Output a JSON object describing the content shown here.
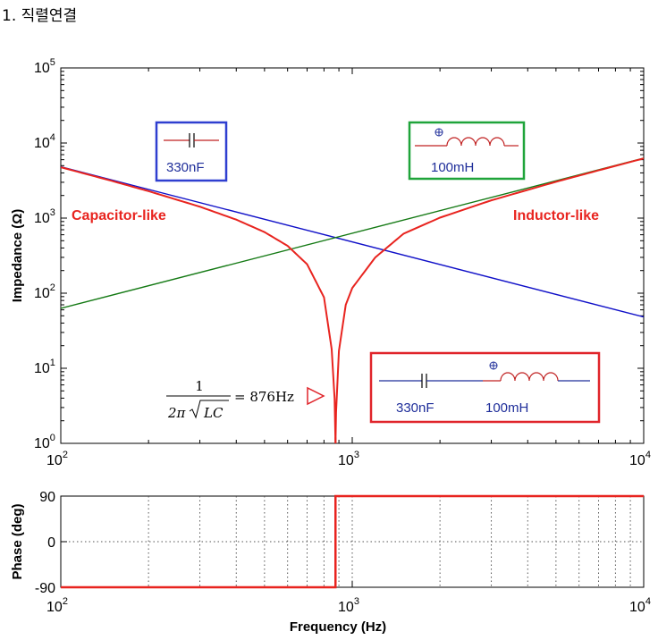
{
  "heading": "1. 직렬연결",
  "chart_data": [
    {
      "type": "line",
      "scale": "log-log",
      "ylabel": "Impedance (Ω)",
      "xlim": [
        100,
        10000
      ],
      "ylim": [
        1,
        100000
      ],
      "x_ticks": [
        {
          "base": "10",
          "exp": "2",
          "value": 100
        },
        {
          "base": "10",
          "exp": "3",
          "value": 1000
        },
        {
          "base": "10",
          "exp": "4",
          "value": 10000
        }
      ],
      "y_ticks": [
        {
          "base": "10",
          "exp": "0",
          "value": 1
        },
        {
          "base": "10",
          "exp": "1",
          "value": 10
        },
        {
          "base": "10",
          "exp": "2",
          "value": 100
        },
        {
          "base": "10",
          "exp": "3",
          "value": 1000
        },
        {
          "base": "10",
          "exp": "4",
          "value": 10000
        },
        {
          "base": "10",
          "exp": "5",
          "value": 100000
        }
      ],
      "series": [
        {
          "color": "#1010c8",
          "kind": "capacitor",
          "x": [
            100,
            10000
          ],
          "y": [
            4823,
            48.2
          ]
        },
        {
          "color": "#157a15",
          "kind": "inductor",
          "x": [
            100,
            10000
          ],
          "y": [
            62.8,
            6283
          ]
        },
        {
          "color": "#e8241f",
          "kind": "series-LC",
          "x": [
            100,
            150,
            200,
            300,
            400,
            500,
            600,
            700,
            800,
            850,
            870,
            876,
            880,
            900,
            950,
            1000,
            1200,
            1500,
            2000,
            3000,
            5000,
            7000,
            10000
          ],
          "y": [
            4760,
            3122,
            2286,
            1419,
            954,
            651,
            427,
            243,
            88,
            18,
            3.9,
            1,
            2.6,
            17,
            70,
            117,
            300,
            620,
            1014,
            1724,
            3045,
            4323,
            6235
          ]
        }
      ],
      "annotations": {
        "capacitor_like": "Capacitor-like",
        "inductor_like": "Inductor-like",
        "formula_numerator": "1",
        "formula_denominator_left": "2π",
        "formula_denominator_radicand": "LC",
        "formula_result": "= 876Hz",
        "capacitor_box_label": "330nF",
        "inductor_box_label": "100mH",
        "series_cap_label": "330nF",
        "series_ind_label": "100mH"
      }
    },
    {
      "type": "line",
      "scale": "semilog-x",
      "ylabel": "Phase (deg)",
      "xlabel": "Frequency (Hz)",
      "xlim": [
        100,
        10000
      ],
      "ylim": [
        -90,
        90
      ],
      "x_ticks": [
        {
          "base": "10",
          "exp": "2",
          "value": 100
        },
        {
          "base": "10",
          "exp": "3",
          "value": 1000
        },
        {
          "base": "10",
          "exp": "4",
          "value": 10000
        }
      ],
      "y_ticks": [
        "90",
        "0",
        "-90"
      ],
      "y_tick_values": [
        90,
        0,
        -90
      ],
      "series": [
        {
          "color": "#e8241f",
          "x": [
            100,
            876,
            876,
            10000
          ],
          "y": [
            -90,
            -90,
            90,
            90
          ]
        }
      ]
    }
  ],
  "colors": {
    "capacitor": "#1010c8",
    "inductor": "#157a15",
    "series": "#e8241f",
    "box_blue": "#2f3fd0",
    "box_green": "#1fa43a",
    "box_red": "#e0242a"
  }
}
